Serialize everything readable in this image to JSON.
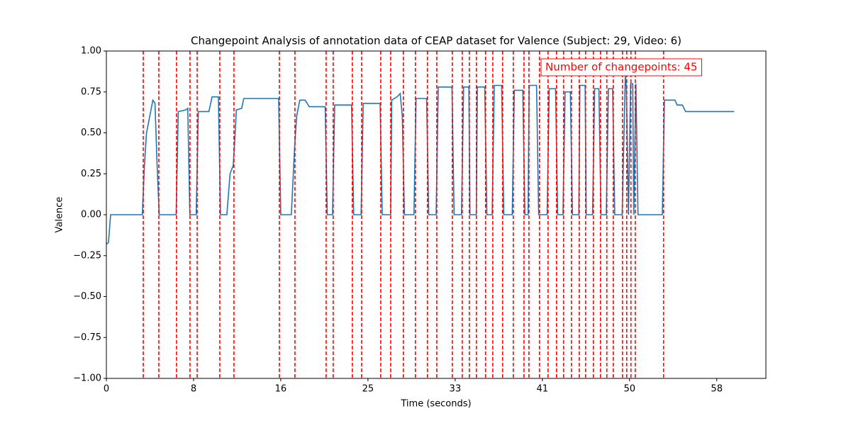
{
  "chart_data": {
    "type": "line",
    "title": "Changepoint Analysis of annotation data of CEAP dataset for Valence (Subject: 29, Video: 6)",
    "xlabel": "Time (seconds)",
    "ylabel": "Valence",
    "xlim": [
      0,
      62.4
    ],
    "ylim": [
      -1,
      1
    ],
    "xticks": [
      0,
      {
        "value": 8.25,
        "label": "8"
      },
      {
        "value": 16.5,
        "label": "16"
      },
      {
        "value": 24.75,
        "label": "25"
      },
      {
        "value": 33,
        "label": "33"
      },
      {
        "value": 41.25,
        "label": "41"
      },
      {
        "value": 49.5,
        "label": "50"
      },
      {
        "value": 57.75,
        "label": "58"
      }
    ],
    "yticks": [
      {
        "value": -1,
        "label": "−1.00"
      },
      {
        "value": -0.75,
        "label": "−0.75"
      },
      {
        "value": -0.5,
        "label": "−0.50"
      },
      {
        "value": -0.25,
        "label": "−0.25"
      },
      {
        "value": 0,
        "label": "0.00"
      },
      {
        "value": 0.25,
        "label": "0.25"
      },
      {
        "value": 0.5,
        "label": "0.50"
      },
      {
        "value": 0.75,
        "label": "0.75"
      },
      {
        "value": 1,
        "label": "1.00"
      }
    ],
    "x": [
      0,
      0.2,
      0.4,
      3.4,
      3.6,
      3.8,
      4.1,
      4.4,
      4.6,
      4.8,
      5.0,
      6.6,
      6.8,
      7.5,
      7.7,
      7.9,
      8.5,
      8.7,
      9.7,
      10.0,
      10.6,
      10.8,
      11.4,
      11.7,
      12.0,
      12.1,
      12.3,
      12.8,
      13.0,
      16.3,
      16.5,
      17.5,
      17.8,
      18.0,
      18.3,
      18.8,
      19.2,
      20.7,
      20.9,
      21.4,
      21.6,
      23.2,
      23.4,
      24.1,
      24.3,
      25.9,
      26.1,
      26.9,
      27.0,
      27.5,
      27.8,
      28.0,
      28.2,
      29.1,
      29.3,
      30.3,
      30.5,
      31.2,
      31.4,
      32.7,
      32.9,
      33.6,
      33.8,
      34.3,
      34.4,
      35.0,
      35.1,
      35.8,
      36.0,
      36.5,
      36.7,
      37.4,
      37.6,
      38.4,
      38.6,
      39.4,
      39.6,
      39.9,
      40.0,
      40.7,
      40.9,
      41.7,
      41.9,
      42.5,
      42.7,
      43.2,
      43.4,
      43.9,
      44.1,
      44.7,
      44.8,
      45.3,
      45.4,
      46.0,
      46.2,
      46.6,
      46.8,
      47.3,
      47.5,
      47.9,
      48.1,
      48.8,
      49.1,
      49.2,
      49.4,
      49.6,
      49.8,
      49.9,
      50.1,
      50.3,
      52.6,
      52.8,
      53.8,
      54.0,
      54.5,
      54.8,
      59.4
    ],
    "series": [
      {
        "color": "#1f77b4",
        "values": [
          -0.18,
          -0.17,
          0,
          0,
          0.3,
          0.5,
          0.6,
          0.7,
          0.68,
          0.3,
          0,
          0,
          0.63,
          0.64,
          0.65,
          0,
          0,
          0.63,
          0.63,
          0.72,
          0.72,
          0,
          0,
          0.25,
          0.3,
          0.4,
          0.64,
          0.65,
          0.71,
          0.71,
          0,
          0,
          0.4,
          0.6,
          0.7,
          0.7,
          0.66,
          0.66,
          0,
          0,
          0.67,
          0.67,
          0,
          0,
          0.68,
          0.68,
          0,
          0,
          0.7,
          0.72,
          0.74,
          0.6,
          0,
          0,
          0.71,
          0.71,
          0,
          0,
          0.78,
          0.78,
          0,
          0,
          0.78,
          0.78,
          0,
          0,
          0.78,
          0.78,
          0,
          0,
          0.79,
          0.79,
          0,
          0,
          0.76,
          0.76,
          0,
          0,
          0.79,
          0.79,
          0,
          0,
          0.77,
          0.77,
          0,
          0,
          0.75,
          0.75,
          0,
          0,
          0.79,
          0.79,
          0,
          0,
          0.77,
          0.77,
          0,
          0,
          0.77,
          0.77,
          0,
          0,
          0.85,
          0.78,
          0,
          0.8,
          0.8,
          0,
          0.8,
          0,
          0,
          0.7,
          0.7,
          0.67,
          0.67,
          0.63,
          0.63
        ]
      }
    ],
    "changepoints": [
      3.49,
      4.96,
      6.64,
      7.91,
      8.59,
      10.73,
      12.07,
      16.37,
      17.84,
      20.79,
      21.46,
      23.27,
      24.15,
      25.96,
      26.9,
      28.1,
      29.24,
      30.38,
      31.26,
      32.73,
      33.67,
      34.34,
      35.01,
      35.88,
      36.56,
      37.49,
      38.5,
      39.51,
      39.98,
      40.98,
      41.79,
      42.59,
      43.26,
      44.0,
      44.74,
      45.34,
      46.08,
      46.75,
      47.35,
      47.96,
      48.83,
      49.23,
      49.63,
      50.04,
      52.72
    ],
    "changepoint_color": "#ff0000",
    "annotation": "Number of changepoints: 45"
  }
}
